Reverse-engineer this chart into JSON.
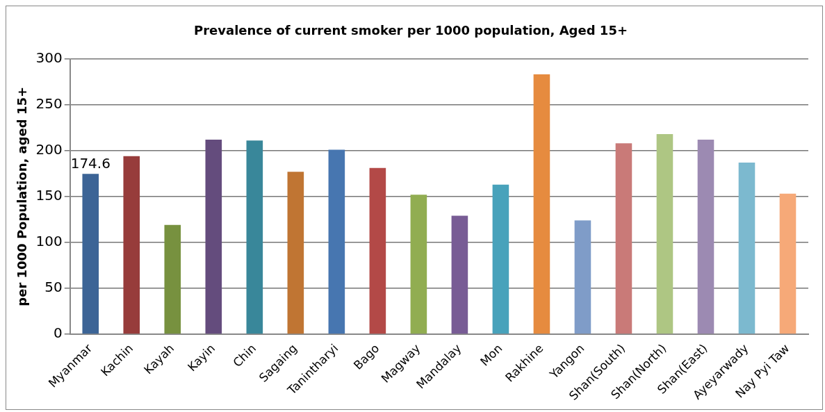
{
  "chart_data": {
    "type": "bar",
    "title": "Prevalence of current smoker per 1000 population, Aged 15+",
    "ylabel": "per 1000 Population, aged 15+",
    "categories": [
      "Myanmar",
      "Kachin",
      "Kayah",
      "Kayin",
      "Chin",
      "Sagaing",
      "Tanintharyi",
      "Bago",
      "Magway",
      "Mandalay",
      "Mon",
      "Rakhine",
      "Yangon",
      "Shan(South)",
      "Shan(North)",
      "Shan(East)",
      "Ayeyarwady",
      "Nay Pyi Taw"
    ],
    "values": [
      174.6,
      194,
      119,
      212,
      211,
      177,
      201,
      181,
      152,
      129,
      163,
      283,
      124,
      208,
      218,
      212,
      187,
      153
    ],
    "colors": [
      "#3c6496",
      "#973c3b",
      "#77913f",
      "#644c7d",
      "#39879a",
      "#c07533",
      "#4776b0",
      "#b34947",
      "#91ad51",
      "#785c95",
      "#48a2bb",
      "#e68b3f",
      "#7f9cc8",
      "#c97a78",
      "#aec683",
      "#9c8ab2",
      "#7cb9cf",
      "#f6a978"
    ],
    "value_labels": [
      "174.6",
      null,
      null,
      null,
      null,
      null,
      null,
      null,
      null,
      null,
      null,
      null,
      null,
      null,
      null,
      null,
      null,
      null
    ],
    "ylim": [
      0,
      300
    ],
    "yticks": [
      0,
      50,
      100,
      150,
      200,
      250,
      300
    ],
    "grid": "y",
    "legend": false
  }
}
